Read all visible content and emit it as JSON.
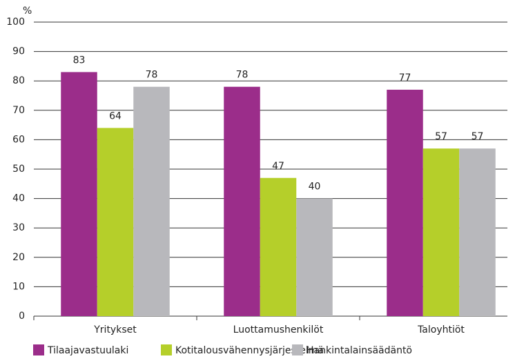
{
  "chart_data": {
    "type": "bar",
    "y_axis_label": "%",
    "categories": [
      "Yritykset",
      "Luottamushenkilöt",
      "Taloyhtiöt"
    ],
    "series": [
      {
        "name": "Tilaajavastuulaki",
        "color": "#9b2d8a",
        "values": [
          83,
          78,
          77
        ]
      },
      {
        "name": "Kotitalousvähennysjärjestelmä",
        "color": "#b5cf2a",
        "values": [
          64,
          47,
          57
        ]
      },
      {
        "name": "Hankintalainsäädäntö",
        "color": "#b8b8bc",
        "values": [
          78,
          40,
          57
        ]
      }
    ],
    "ylim": [
      0,
      100
    ],
    "yticks": [
      0,
      10,
      20,
      30,
      40,
      50,
      60,
      70,
      80,
      90,
      100
    ],
    "grid": true,
    "legend": "bottom"
  }
}
